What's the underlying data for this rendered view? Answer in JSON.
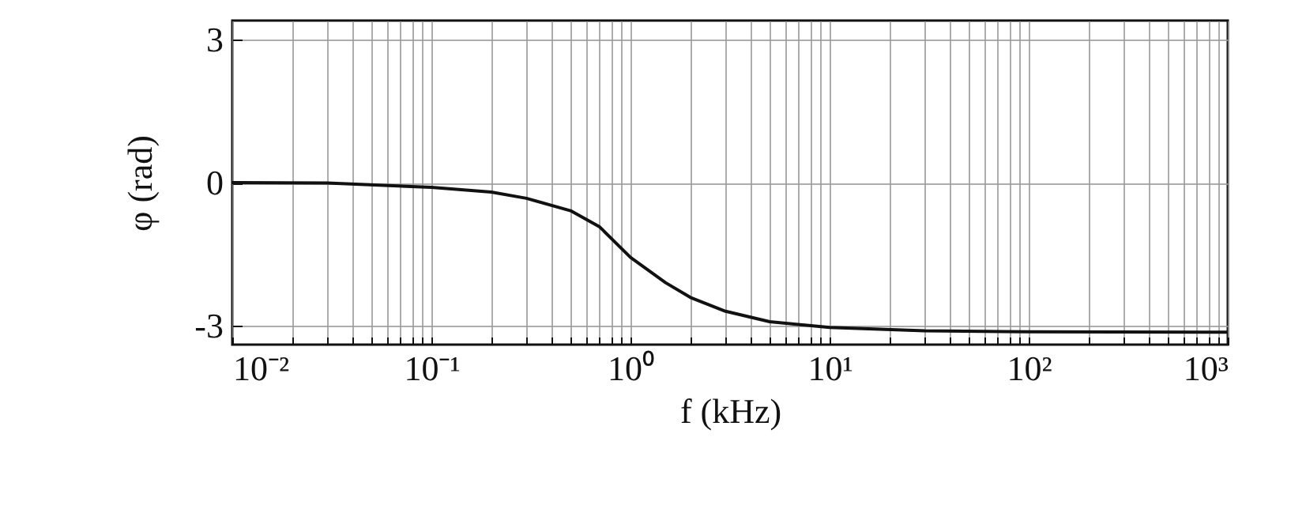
{
  "chart_data": {
    "type": "line",
    "xlabel": "f (kHz)",
    "ylabel": "φ (rad)",
    "x": [
      0.01,
      0.03,
      0.1,
      0.2,
      0.3,
      0.5,
      0.7,
      1,
      1.5,
      2,
      3,
      5,
      10,
      30,
      100,
      1000
    ],
    "series": [
      {
        "color": "#111111",
        "values": [
          0,
          -0.01,
          -0.1,
          -0.2,
          -0.33,
          -0.59,
          -0.93,
          -1.57,
          -2.1,
          -2.41,
          -2.7,
          -2.92,
          -3.04,
          -3.11,
          -3.13,
          -3.14
        ]
      }
    ],
    "log": "x",
    "xlim": [
      0.01,
      1000
    ],
    "ylim": [
      -3.4,
      3.4
    ],
    "yticks": [
      -3,
      0,
      3
    ],
    "xticks": [
      {
        "value": 0.01,
        "label": "10⁻²"
      },
      {
        "value": 0.02,
        "label": null
      },
      {
        "value": 0.03,
        "label": null
      },
      {
        "value": 0.04,
        "label": null
      },
      {
        "value": 0.05,
        "label": null
      },
      {
        "value": 0.06,
        "label": null
      },
      {
        "value": 0.07,
        "label": null
      },
      {
        "value": 0.08,
        "label": null
      },
      {
        "value": 0.09,
        "label": null
      },
      {
        "value": 0.1,
        "label": "10⁻¹"
      },
      {
        "value": 0.2,
        "label": null
      },
      {
        "value": 0.3,
        "label": null
      },
      {
        "value": 0.4,
        "label": null
      },
      {
        "value": 0.5,
        "label": null
      },
      {
        "value": 0.6,
        "label": null
      },
      {
        "value": 0.7,
        "label": null
      },
      {
        "value": 0.8,
        "label": null
      },
      {
        "value": 0.9,
        "label": null
      },
      {
        "value": 1,
        "label": "10⁰"
      },
      {
        "value": 2,
        "label": null
      },
      {
        "value": 3,
        "label": null
      },
      {
        "value": 4,
        "label": null
      },
      {
        "value": 5,
        "label": null
      },
      {
        "value": 6,
        "label": null
      },
      {
        "value": 7,
        "label": null
      },
      {
        "value": 8,
        "label": null
      },
      {
        "value": 9,
        "label": null
      },
      {
        "value": 10,
        "label": "10¹"
      },
      {
        "value": 20,
        "label": null
      },
      {
        "value": 30,
        "label": null
      },
      {
        "value": 40,
        "label": null
      },
      {
        "value": 50,
        "label": null
      },
      {
        "value": 60,
        "label": null
      },
      {
        "value": 70,
        "label": null
      },
      {
        "value": 80,
        "label": null
      },
      {
        "value": 90,
        "label": null
      },
      {
        "value": 100,
        "label": "10²"
      },
      {
        "value": 200,
        "label": null
      },
      {
        "value": 300,
        "label": null
      },
      {
        "value": 400,
        "label": null
      },
      {
        "value": 500,
        "label": null
      },
      {
        "value": 600,
        "label": null
      },
      {
        "value": 700,
        "label": null
      },
      {
        "value": 800,
        "label": null
      },
      {
        "value": 900,
        "label": null
      },
      {
        "value": 1000,
        "label": "10³"
      }
    ],
    "grid": true,
    "line_style": "solid"
  }
}
